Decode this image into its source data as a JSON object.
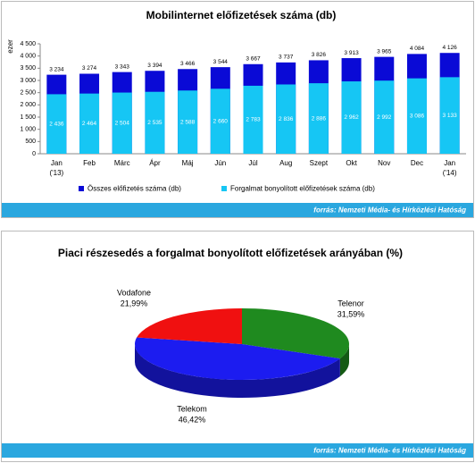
{
  "chart_data": [
    {
      "type": "bar",
      "title": "Mobilinternet előfizetések száma  (db)",
      "y_label": "ezer",
      "source": "forrás: Nemzeti Média- és Hírközlési Hatóság",
      "categories": [
        "Jan\n('13)",
        "Feb",
        "Márc",
        "Ápr",
        "Máj",
        "Jún",
        "Júl",
        "Aug",
        "Szept",
        "Okt",
        "Nov",
        "Dec",
        "Jan\n('14)"
      ],
      "series": [
        {
          "name": "Összes előfizetés száma (db)",
          "color": "#0a0ad6",
          "values": [
            3234,
            3274,
            3343,
            3394,
            3466,
            3544,
            3667,
            3737,
            3826,
            3913,
            3965,
            4084,
            4126
          ],
          "value_labels": [
            "3 234",
            "3 274",
            "3 343",
            "3 394",
            "3 466",
            "3 544",
            "3 667",
            "3 737",
            "3 826",
            "3 913",
            "3 965",
            "4 084",
            "4 126"
          ]
        },
        {
          "name": "Forgalmat bonyolított előfizetések száma (db)",
          "color": "#16c6f4",
          "values": [
            2436,
            2464,
            2504,
            2535,
            2588,
            2660,
            2783,
            2836,
            2886,
            2962,
            2992,
            3086,
            3133
          ],
          "value_labels": [
            "2 436",
            "2 464",
            "2 504",
            "2 535",
            "2 588",
            "2 660",
            "2 783",
            "2 836",
            "2 886",
            "2 962",
            "2 992",
            "3 086",
            "3 133"
          ]
        }
      ],
      "ylim": [
        0,
        4500
      ],
      "yticks": [
        0,
        500,
        {
          "value": 1000,
          "label": "1 000"
        },
        {
          "value": 1500,
          "label": "1 500"
        },
        {
          "value": 2000,
          "label": "2 000"
        },
        {
          "value": 2500,
          "label": "2 500"
        },
        {
          "value": 3000,
          "label": "3 000"
        },
        {
          "value": 3500,
          "label": "3 500"
        },
        {
          "value": 4000,
          "label": "4 000"
        },
        {
          "value": 4500,
          "label": "4 500"
        }
      ],
      "legend": "bottom"
    },
    {
      "type": "pie",
      "title": "Piaci részesedés a forgalmat bonyolított előfizetések arányában (%)",
      "source": "forrás: Nemzeti Média- és Hírközlési Hatóság",
      "categories": [
        "Telenor",
        "Telekom",
        "Vodafone"
      ],
      "values": [
        31.59,
        46.42,
        21.99
      ],
      "value_labels": [
        "31,59%",
        "46,42%",
        "21,99%"
      ],
      "colors": [
        "#1f8a1f",
        "#1c1cf0",
        "#f01010"
      ]
    }
  ]
}
